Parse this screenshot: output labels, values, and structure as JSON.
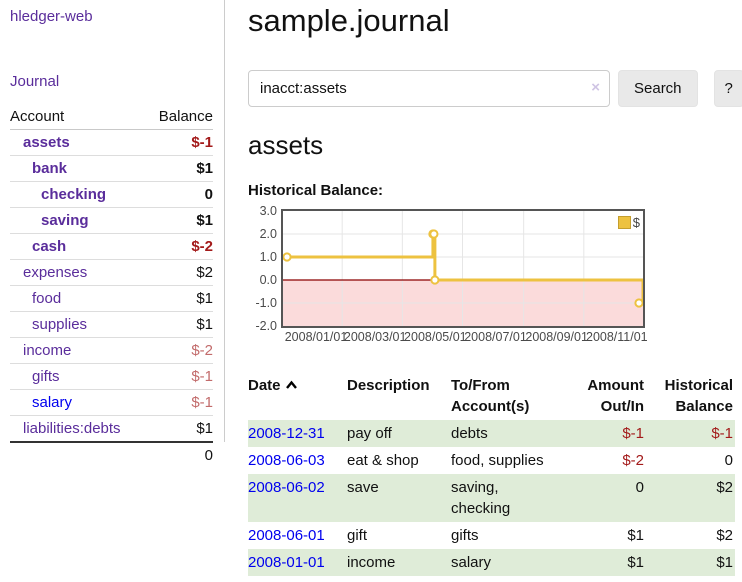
{
  "app": {
    "brand": "hledger-web"
  },
  "sidebar": {
    "nav_journal": "Journal",
    "accounts": {
      "header_account": "Account",
      "header_balance": "Balance",
      "rows": [
        {
          "name": "assets",
          "balance": "$-1",
          "depth": 1,
          "bold": true,
          "balance_tone": "negative"
        },
        {
          "name": "bank",
          "balance": "$1",
          "depth": 2,
          "bold": true,
          "balance_tone": "normal"
        },
        {
          "name": "checking",
          "balance": "0",
          "depth": 3,
          "bold": true,
          "balance_tone": "normal"
        },
        {
          "name": "saving",
          "balance": "$1",
          "depth": 3,
          "bold": true,
          "balance_tone": "normal"
        },
        {
          "name": "cash",
          "balance": "$-2",
          "depth": 2,
          "bold": true,
          "balance_tone": "negative"
        },
        {
          "name": "expenses",
          "balance": "$2",
          "depth": 1,
          "bold": false,
          "balance_tone": "normal"
        },
        {
          "name": "food",
          "balance": "$1",
          "depth": 2,
          "bold": false,
          "balance_tone": "normal"
        },
        {
          "name": "supplies",
          "balance": "$1",
          "depth": 2,
          "bold": false,
          "balance_tone": "normal"
        },
        {
          "name": "income",
          "balance": "$-2",
          "depth": 1,
          "bold": false,
          "balance_tone": "negative-muted"
        },
        {
          "name": "gifts",
          "balance": "$-1",
          "depth": 2,
          "bold": false,
          "balance_tone": "negative-muted"
        },
        {
          "name": "salary",
          "balance": "$-1",
          "depth": 2,
          "bold": false,
          "balance_tone": "negative-muted",
          "link_unvisited": true
        },
        {
          "name": "liabilities:debts",
          "balance": "$1",
          "depth": 1,
          "bold": false,
          "balance_tone": "normal"
        }
      ],
      "total": "0"
    }
  },
  "main": {
    "title": "sample.journal",
    "search": {
      "value": "inacct:assets",
      "clear_icon": "×",
      "button_label": "Search",
      "help_label": "?"
    },
    "account_heading": "assets",
    "chart_label": "Historical Balance:",
    "register": {
      "headers": {
        "date": "Date",
        "description": "Description",
        "tofrom": "To/From Account(s)",
        "amount": "Amount Out/In",
        "historical": "Historical Balance"
      },
      "rows": [
        {
          "date": "2008-12-31",
          "description": "pay off",
          "tofrom": "debts",
          "amount": "$-1",
          "amount_tone": "negative",
          "historical": "$-1",
          "historical_tone": "negative"
        },
        {
          "date": "2008-06-03",
          "description": "eat & shop",
          "tofrom": "food, supplies",
          "amount": "$-2",
          "amount_tone": "negative",
          "historical": "0",
          "historical_tone": "normal"
        },
        {
          "date": "2008-06-02",
          "description": "save",
          "tofrom": "saving, checking",
          "amount": "0",
          "amount_tone": "normal",
          "historical": "$2",
          "historical_tone": "normal"
        },
        {
          "date": "2008-06-01",
          "description": "gift",
          "tofrom": "gifts",
          "amount": "$1",
          "amount_tone": "normal",
          "historical": "$2",
          "historical_tone": "normal"
        },
        {
          "date": "2008-01-01",
          "description": "income",
          "tofrom": "salary",
          "amount": "$1",
          "amount_tone": "normal",
          "historical": "$1",
          "historical_tone": "normal"
        }
      ]
    }
  },
  "chart_data": {
    "type": "line",
    "title": "Historical Balance",
    "step": true,
    "series": [
      {
        "name": "$",
        "color": "#edc240",
        "points": [
          {
            "date": "2008-01-01",
            "value": 1
          },
          {
            "date": "2008-06-01",
            "value": 2
          },
          {
            "date": "2008-06-02",
            "value": 2
          },
          {
            "date": "2008-06-03",
            "value": 0
          },
          {
            "date": "2008-12-31",
            "value": -1
          }
        ]
      }
    ],
    "x_range": [
      "2008-01-01",
      "2008-12-31"
    ],
    "y_range": [
      -2,
      3
    ],
    "y_ticks": [
      {
        "v": 3,
        "label": "3.0"
      },
      {
        "v": 2,
        "label": "2.0"
      },
      {
        "v": 1,
        "label": "1.0"
      },
      {
        "v": 0,
        "label": "0.0"
      },
      {
        "v": -1,
        "label": "-1.0"
      },
      {
        "v": -2,
        "label": "-2.0"
      }
    ],
    "x_ticks": [
      {
        "date": "2008-01-01",
        "label": "2008/01/01"
      },
      {
        "date": "2008-03-01",
        "label": "2008/03/01"
      },
      {
        "date": "2008-05-01",
        "label": "2008/05/01"
      },
      {
        "date": "2008-07-01",
        "label": "2008/07/01"
      },
      {
        "date": "2008-09-01",
        "label": "2008/09/01"
      },
      {
        "date": "2008-11-01",
        "label": "2008/11/01"
      }
    ],
    "legend_position": "top-right",
    "grid": true,
    "colors": {
      "line": "#edc240",
      "marker_fill": "#ffffff",
      "negative_region": "#fbdbdb",
      "zero_line": "#8b0000",
      "grid": "#e6e6e6",
      "border": "#555555"
    }
  }
}
